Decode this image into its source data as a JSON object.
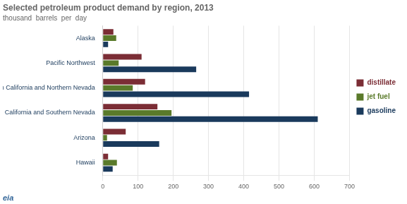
{
  "chart_data": {
    "type": "bar",
    "orientation": "horizontal",
    "title": "Selected petroleum product demand by region, 2013",
    "subtitle": "thousand  barrels  per  day",
    "annotations": [
      "eia"
    ],
    "categories": [
      "Hawaii",
      "Arizona",
      "Southern California and Southern Nevada",
      "Northern California and Northern Nevada",
      "Pacific Northwest",
      "Alaska"
    ],
    "series": [
      {
        "name": "distillate",
        "color": "#7b2d35",
        "values": [
          15,
          65,
          155,
          120,
          110,
          30
        ]
      },
      {
        "name": "jet fuel",
        "color": "#5a7a2a",
        "values": [
          40,
          12,
          195,
          85,
          45,
          38
        ]
      },
      {
        "name": "gasoline",
        "color": "#1a3a5c",
        "values": [
          28,
          160,
          610,
          415,
          265,
          15
        ]
      }
    ],
    "xlim": [
      0,
      700
    ],
    "xticks": [
      0,
      100,
      200,
      300,
      400,
      500,
      600,
      700
    ],
    "grid": true,
    "legend": "right"
  }
}
